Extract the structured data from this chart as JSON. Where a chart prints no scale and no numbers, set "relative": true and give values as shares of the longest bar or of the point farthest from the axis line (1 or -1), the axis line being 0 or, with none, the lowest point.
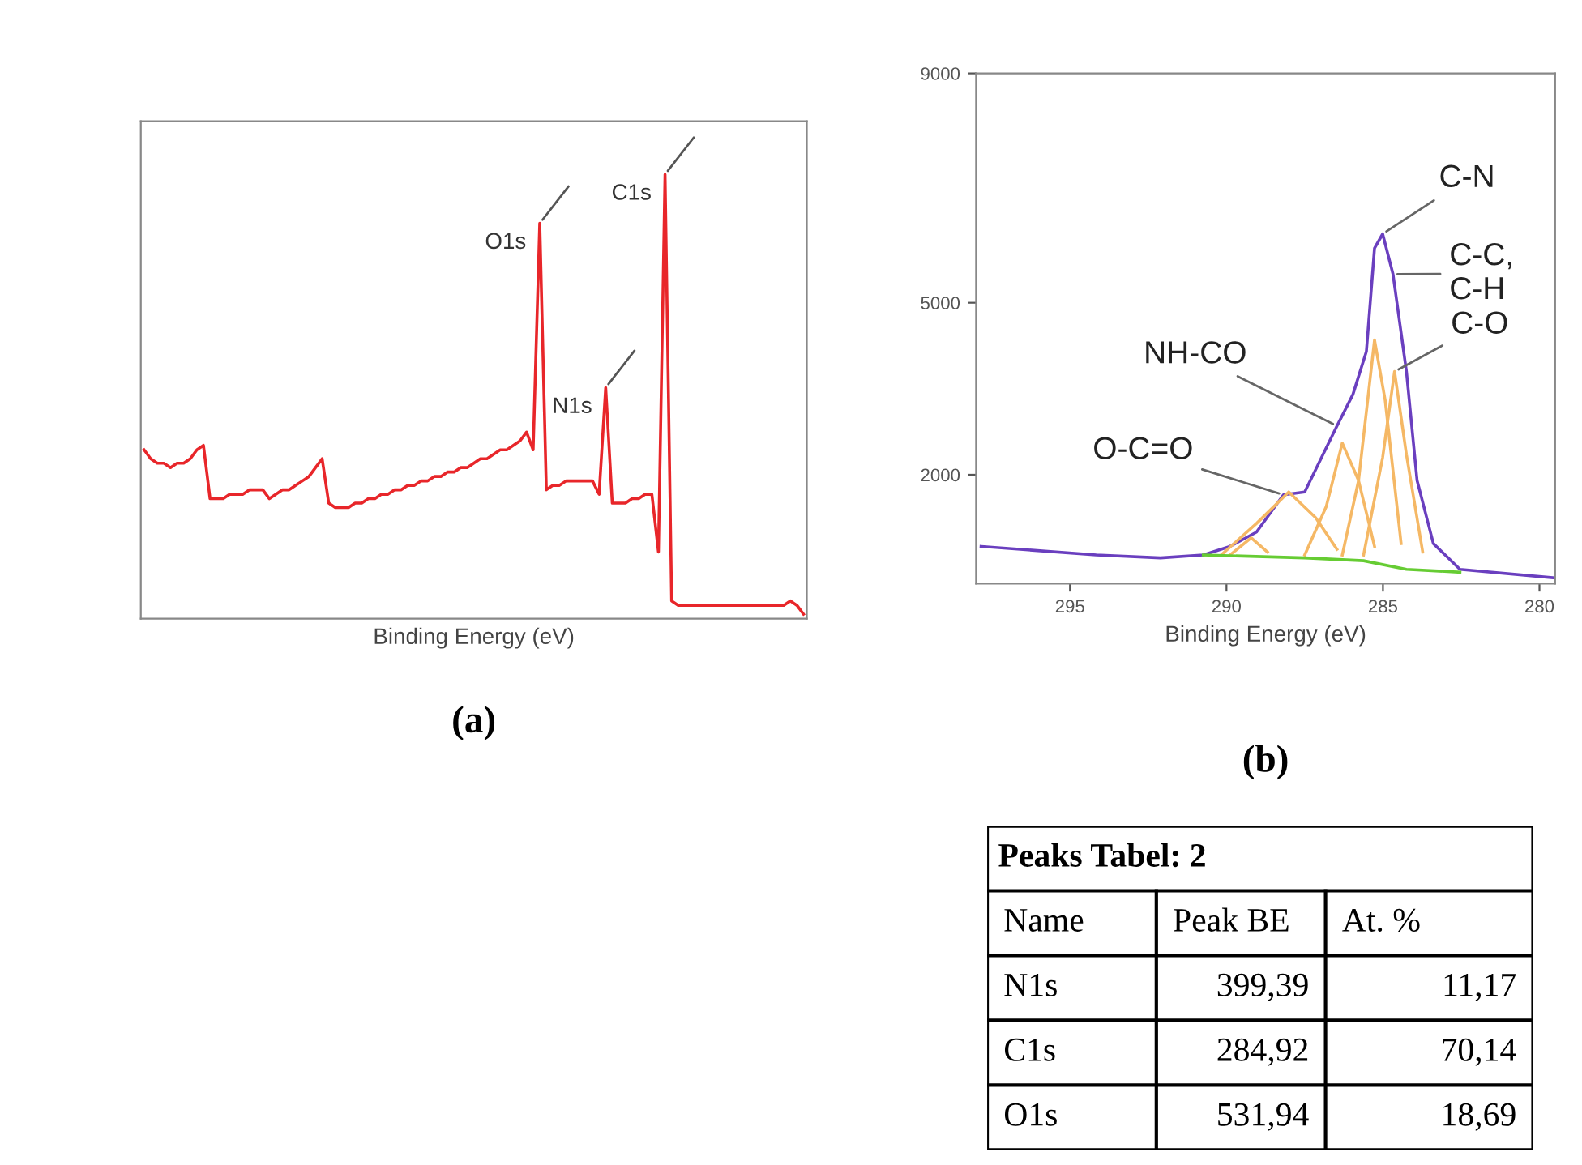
{
  "chart_data": [
    {
      "type": "line",
      "relative": true,
      "xlabel": "Binding Energy (eV)",
      "categories": [
        null,
        null,
        null,
        null,
        null,
        null,
        null,
        null,
        null,
        null,
        null,
        null,
        null,
        null,
        null,
        null,
        null,
        null,
        null,
        null,
        null,
        null,
        null,
        null,
        null,
        null,
        null,
        null,
        null,
        null,
        null,
        null,
        null,
        null,
        null,
        null,
        null,
        null,
        null,
        null,
        null,
        null,
        null,
        null,
        null,
        null,
        null,
        null,
        null,
        null,
        null,
        null,
        null,
        null,
        null,
        null,
        null,
        null,
        null,
        null,
        null,
        null,
        null,
        null,
        null,
        null,
        null,
        null,
        null,
        null,
        null,
        null,
        null,
        null,
        null,
        null,
        null,
        null,
        null,
        null,
        null,
        null,
        null,
        null,
        null,
        null,
        null,
        null,
        null,
        null,
        null,
        null,
        null,
        null,
        null,
        null,
        null,
        null,
        null,
        null,
        null
      ],
      "series": [
        {
          "color": "#e8262a",
          "values": [
            0.38,
            0.36,
            0.35,
            0.35,
            0.34,
            0.35,
            0.35,
            0.36,
            0.38,
            0.39,
            0.27,
            0.27,
            0.27,
            0.28,
            0.28,
            0.28,
            0.29,
            0.29,
            0.29,
            0.27,
            0.28,
            0.29,
            0.29,
            0.3,
            0.31,
            0.32,
            0.34,
            0.36,
            0.26,
            0.25,
            0.25,
            0.25,
            0.26,
            0.26,
            0.27,
            0.27,
            0.28,
            0.28,
            0.29,
            0.29,
            0.3,
            0.3,
            0.31,
            0.31,
            0.32,
            0.32,
            0.33,
            0.33,
            0.34,
            0.34,
            0.35,
            0.36,
            0.36,
            0.37,
            0.38,
            0.38,
            0.39,
            0.4,
            0.42,
            0.38,
            0.89,
            0.29,
            0.3,
            0.3,
            0.31,
            0.31,
            0.31,
            0.31,
            0.31,
            0.28,
            0.52,
            0.26,
            0.26,
            0.26,
            0.27,
            0.27,
            0.28,
            0.28,
            0.15,
            1.0,
            0.04,
            0.03,
            0.03,
            0.03,
            0.03,
            0.03,
            0.03,
            0.03,
            0.03,
            0.03,
            0.03,
            0.03,
            0.03,
            0.03,
            0.03,
            0.03,
            0.03,
            0.03,
            0.04,
            0.03,
            0.01
          ]
        }
      ],
      "annotations": [
        "O1s",
        "N1s",
        "C1s",
        "(a)"
      ]
    },
    {
      "type": "line",
      "xlabel": "Binding Energy (eV)",
      "xlim": [
        298,
        279.5
      ],
      "xticks": [
        295,
        290,
        285,
        280
      ],
      "ylim": [
        100,
        9000
      ],
      "yticks": [
        2000,
        5000,
        9000
      ],
      "grid": false,
      "series": [
        {
          "color": "#6a3fbf",
          "x": [
            297.84,
            294.16,
            292.11,
            290.74,
            289.89,
            289.04,
            288.18,
            287.5,
            286.47,
            285.96,
            285.53,
            285.27,
            285.01,
            284.68,
            284.25,
            283.91,
            283.39,
            282.54,
            279.5
          ],
          "values": [
            750,
            600,
            550,
            600,
            750,
            1000,
            1650,
            1700,
            2850,
            3400,
            4150,
            5950,
            6200,
            5500,
            3800,
            1900,
            800,
            350,
            200
          ]
        },
        {
          "color": "#f5b865",
          "x": [
            289.89,
            289.21,
            288.69
          ],
          "values": [
            600,
            900,
            650
          ]
        },
        {
          "color": "#f5b865",
          "x": [
            290.17,
            289.04,
            288.01,
            287.15,
            286.47
          ],
          "values": [
            600,
            1150,
            1700,
            1250,
            700
          ]
        },
        {
          "color": "#f5b865",
          "x": [
            287.5,
            286.81,
            286.3,
            285.78,
            285.27
          ],
          "values": [
            600,
            1450,
            2550,
            1900,
            750
          ]
        },
        {
          "color": "#f5b865",
          "x": [
            286.3,
            285.78,
            285.27,
            284.93,
            284.42
          ],
          "values": [
            600,
            1900,
            4350,
            3300,
            800
          ]
        },
        {
          "color": "#f5b865",
          "x": [
            285.62,
            285.01,
            284.63,
            284.25,
            283.73
          ],
          "values": [
            600,
            2300,
            3800,
            2350,
            650
          ]
        },
        {
          "color": "#66cc33",
          "x": [
            290.74,
            287.5,
            285.62,
            284.25,
            282.54
          ],
          "values": [
            600,
            550,
            500,
            350,
            300
          ]
        }
      ],
      "annotations": [
        {
          "text": "C-N",
          "x": 285.01,
          "y": 6200
        },
        {
          "text": "C-C,\nC-H",
          "x": 284.68,
          "y": 5500
        },
        {
          "text": "C-O",
          "x": 284.63,
          "y": 3800
        },
        {
          "text": "NH-CO",
          "x": 286.47,
          "y": 2850
        },
        {
          "text": "O-C=O",
          "x": 288.18,
          "y": 1650
        },
        "(b)"
      ]
    },
    {
      "type": "other",
      "title": "Peaks Tabel: 2",
      "categories": [
        "N1s",
        "C1s",
        "O1s"
      ],
      "data_labels": true,
      "series": [
        {
          "name": "Peak BE",
          "values": [
            399.39,
            284.92,
            531.94
          ],
          "value_labels": [
            "399,39",
            "284,92",
            "531,94"
          ]
        },
        {
          "name": "At. %",
          "values": [
            11.17,
            70.14,
            18.69
          ],
          "value_labels": [
            "11,17",
            "70,14",
            "18,69"
          ]
        }
      ],
      "annotations": [
        "Name"
      ]
    }
  ]
}
